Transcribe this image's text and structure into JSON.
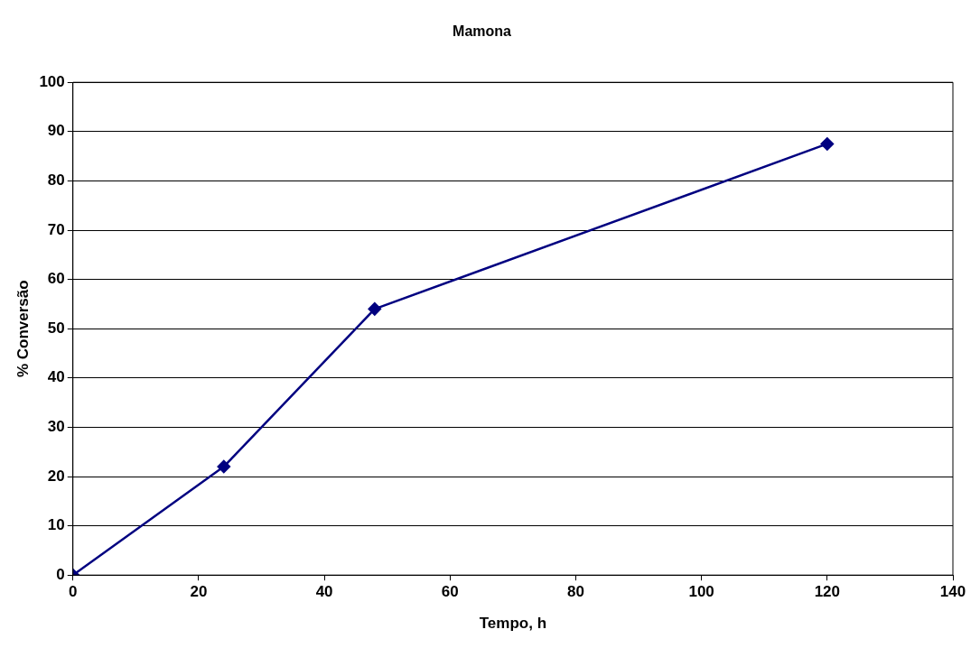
{
  "chart_data": {
    "type": "line",
    "title": "Mamona",
    "xlabel": "Tempo, h",
    "ylabel": "% Conversão",
    "x": [
      0,
      24,
      48,
      120
    ],
    "series": [
      {
        "color": "#000080",
        "values": [
          0,
          22,
          54,
          87.5
        ]
      }
    ],
    "xlim": [
      0,
      140
    ],
    "xticks": [
      0,
      20,
      40,
      60,
      80,
      100,
      120,
      140
    ],
    "ylim": [
      0,
      100
    ],
    "yticks": [
      0,
      10,
      20,
      30,
      40,
      50,
      60,
      70,
      80,
      90,
      100
    ],
    "grid": "y",
    "marker": "diamond",
    "line_style": "solid",
    "legend": false
  }
}
